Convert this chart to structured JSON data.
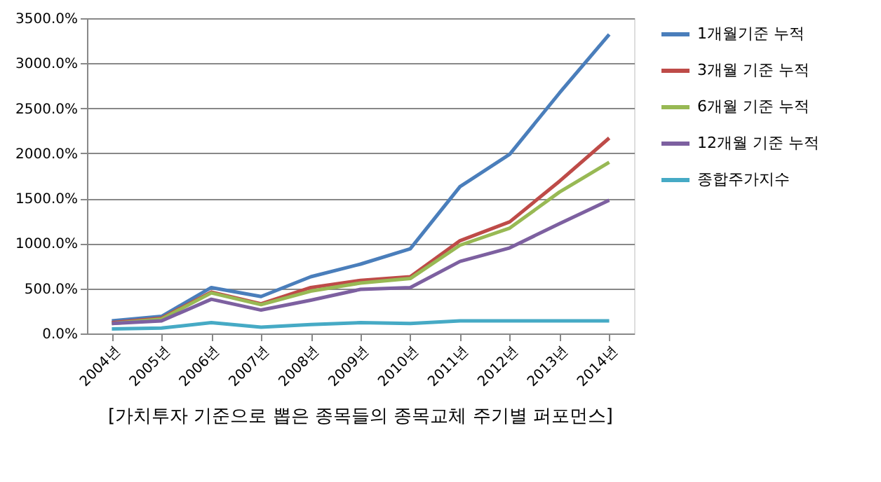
{
  "chart_data": {
    "type": "line",
    "title": "[가치투자 기준으로 뽑은 종목들의 종목교체 주기별 퍼포먼스]",
    "categories": [
      "2004년",
      "2005년",
      "2006년",
      "2007년",
      "2008년",
      "2009년",
      "2010년",
      "2011년",
      "2012년",
      "2013년",
      "2014년"
    ],
    "series": [
      {
        "name": "1개월기준 누적",
        "color": "#4a7ebb",
        "values": [
          140,
          190,
          510,
          410,
          630,
          770,
          940,
          1630,
          1990,
          2670,
          3320
        ]
      },
      {
        "name": "3개월 기준 누적",
        "color": "#be4b48",
        "values": [
          120,
          170,
          460,
          330,
          510,
          590,
          630,
          1030,
          1240,
          1690,
          2170
        ]
      },
      {
        "name": "6개월 기준 누적",
        "color": "#98b954",
        "values": [
          110,
          160,
          450,
          320,
          470,
          560,
          610,
          980,
          1170,
          1570,
          1900
        ]
      },
      {
        "name": "12개월 기준 누적",
        "color": "#7d60a0",
        "values": [
          110,
          140,
          380,
          260,
          370,
          490,
          510,
          800,
          950,
          1220,
          1480
        ]
      },
      {
        "name": "종합주가지수",
        "color": "#46aac5",
        "values": [
          50,
          60,
          120,
          70,
          100,
          120,
          110,
          140,
          140,
          140,
          140
        ]
      }
    ],
    "ylim": [
      0,
      3500
    ],
    "yticks": [
      {
        "value": 0,
        "label": "0.0%"
      },
      {
        "value": 500,
        "label": "500.0%"
      },
      {
        "value": 1000,
        "label": "1000.0%"
      },
      {
        "value": 1500,
        "label": "1500.0%"
      },
      {
        "value": 2000,
        "label": "2000.0%"
      },
      {
        "value": 2500,
        "label": "2500.0%"
      },
      {
        "value": 3000,
        "label": "3000.0%"
      },
      {
        "value": 3500,
        "label": "3500.0%"
      }
    ],
    "grid": "y",
    "legend": "right",
    "marker": "none",
    "line_style": "solid"
  }
}
